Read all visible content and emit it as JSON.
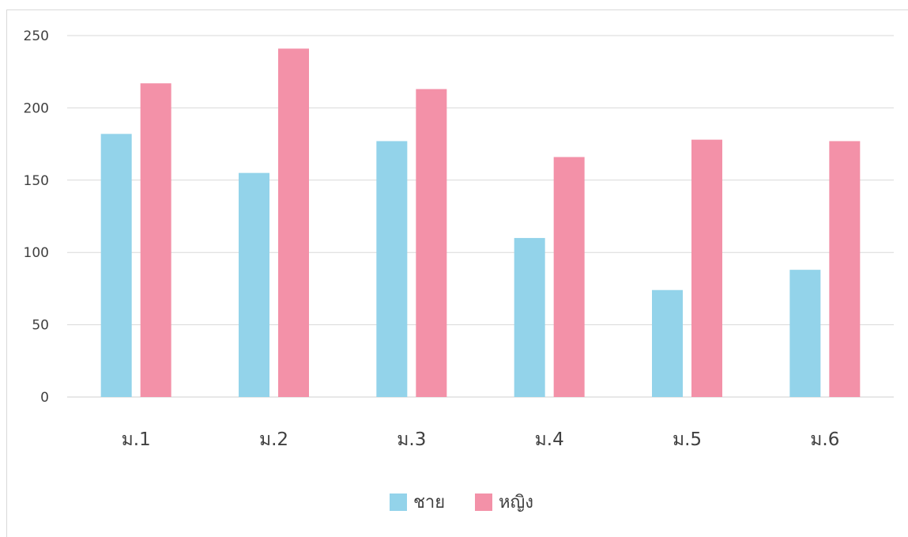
{
  "chart_data": {
    "type": "bar",
    "title": "",
    "xlabel": "",
    "ylabel": "",
    "categories": [
      "ม.1",
      "ม.2",
      "ม.3",
      "ม.4",
      "ม.5",
      "ม.6"
    ],
    "series": [
      {
        "name": "ชาย",
        "color": "#93d3ea",
        "values": [
          182,
          155,
          177,
          110,
          74,
          88
        ]
      },
      {
        "name": "หญิง",
        "color": "#f391a8",
        "values": [
          217,
          241,
          213,
          166,
          178,
          177
        ]
      }
    ],
    "ylim": [
      0,
      250
    ],
    "yticks": [
      "0",
      "50",
      "100",
      "150",
      "200",
      "250"
    ],
    "grid": true,
    "legend_position": "bottom"
  }
}
